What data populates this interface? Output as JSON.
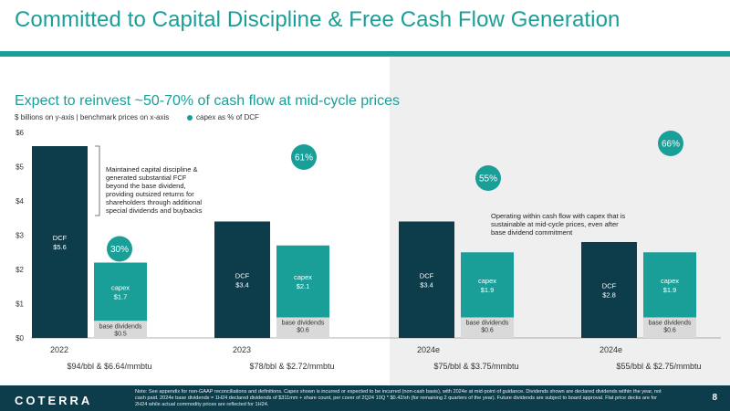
{
  "title": "Committed to Capital Discipline & Free Cash Flow Generation",
  "subtitle": "Expect to reinvest ~50-70% of cash flow at mid-cycle prices",
  "axis_note": "$ billions on y-axis | benchmark prices on x-axis",
  "legend_label": "capex as % of DCF",
  "annotations": {
    "left": "Maintained capital discipline & generated substantial FCF beyond the base dividend, providing outsized returns for shareholders through additional special dividends and buybacks",
    "right": "Operating within cash flow with capex that is sustainable at mid-cycle prices, even after base dividend commitment"
  },
  "footer": {
    "logo": "COTERRA",
    "note": "Note: See appendix for non-GAAP reconciliations and definitions. Capex shown is incurred or expected to be incurred (non-cash basis), with 2024e at mid-point of guidance. Dividends shown are declared dividends within the year, not cash paid. 2024e base dividends = 1H24 declared dividends of $311mm + share count, per cover of 2Q24 10Q * $0.42/sh (for remaining 2 quarters of the year). Future dividends are subject to board approval. Flat price decks are for 2H24 while actual commodity prices are reflected for 1H24.",
    "page": "8"
  },
  "colors": {
    "teal": "#1a9e98",
    "dark": "#0d3d4a",
    "gray": "#d9d9d9"
  },
  "chart_data": {
    "type": "bar",
    "y_tick_labels": [
      "$0",
      "$1",
      "$2",
      "$3",
      "$4",
      "$5",
      "$6"
    ],
    "ylim": [
      0,
      6
    ],
    "groups": [
      {
        "year": "2022",
        "price": "$94/bbl & $6.64/mmbtu",
        "dcf": 5.6,
        "dcf_label": "DCF",
        "dcf_value": "$5.6",
        "capex": 1.7,
        "capex_label": "capex",
        "capex_value": "$1.7",
        "dividends": 0.5,
        "div_label": "base dividends",
        "div_value": "$0.5",
        "pct": "30%"
      },
      {
        "year": "2023",
        "price": "$78/bbl & $2.72/mmbtu",
        "dcf": 3.4,
        "dcf_label": "DCF",
        "dcf_value": "$3.4",
        "capex": 2.1,
        "capex_label": "capex",
        "capex_value": "$2.1",
        "dividends": 0.6,
        "div_label": "base dividends",
        "div_value": "$0.6",
        "pct": "61%"
      },
      {
        "year": "2024e",
        "price": "$75/bbl & $3.75/mmbtu",
        "dcf": 3.4,
        "dcf_label": "DCF",
        "dcf_value": "$3.4",
        "capex": 1.9,
        "capex_label": "capex",
        "capex_value": "$1.9",
        "dividends": 0.6,
        "div_label": "base dividends",
        "div_value": "$0.6",
        "pct": "55%"
      },
      {
        "year": "2024e",
        "price": "$55/bbl & $2.75/mmbtu",
        "dcf": 2.8,
        "dcf_label": "DCF",
        "dcf_value": "$2.8",
        "capex": 1.9,
        "capex_label": "capex",
        "capex_value": "$1.9",
        "dividends": 0.6,
        "div_label": "base dividends",
        "div_value": "$0.6",
        "pct": "66%"
      }
    ]
  }
}
